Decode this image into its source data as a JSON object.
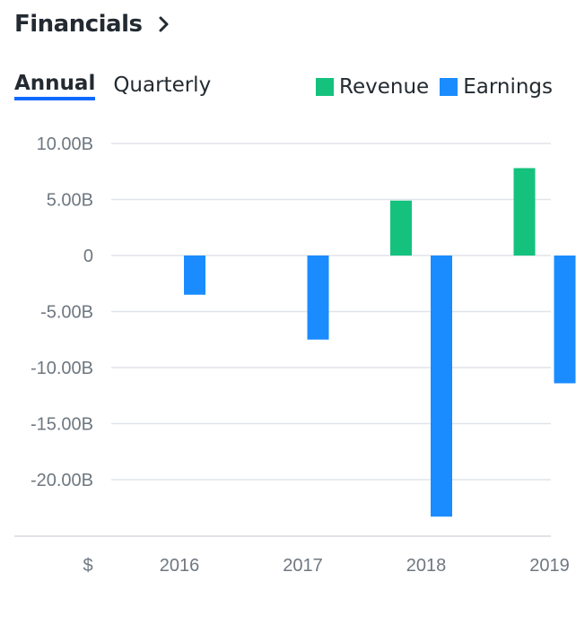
{
  "header": {
    "title": "Financials"
  },
  "tabs": [
    {
      "label": "Annual",
      "active": true
    },
    {
      "label": "Quarterly",
      "active": false
    }
  ],
  "colors": {
    "revenue": "#14c27d",
    "earnings": "#1a8cff",
    "grid": "#e0e4e9",
    "tab_underline": "#0f69ff"
  },
  "chart_data": {
    "type": "bar",
    "categories": [
      "2016",
      "2017",
      "2018",
      "2019"
    ],
    "series": [
      {
        "name": "Revenue",
        "values": [
          null,
          null,
          4.9,
          7.8
        ]
      },
      {
        "name": "Earnings",
        "values": [
          -3.5,
          -7.5,
          -23.3,
          -11.4
        ]
      }
    ],
    "yticks": [
      10,
      5,
      0,
      -5,
      -10,
      -15,
      -20
    ],
    "ytick_labels": [
      "10.00B",
      "5.00B",
      "0",
      "-5.00B",
      "-10.00B",
      "-15.00B",
      "-20.00B"
    ],
    "ylim": [
      -25,
      10
    ],
    "currency_label": "$",
    "legend": [
      "Revenue",
      "Earnings"
    ]
  }
}
